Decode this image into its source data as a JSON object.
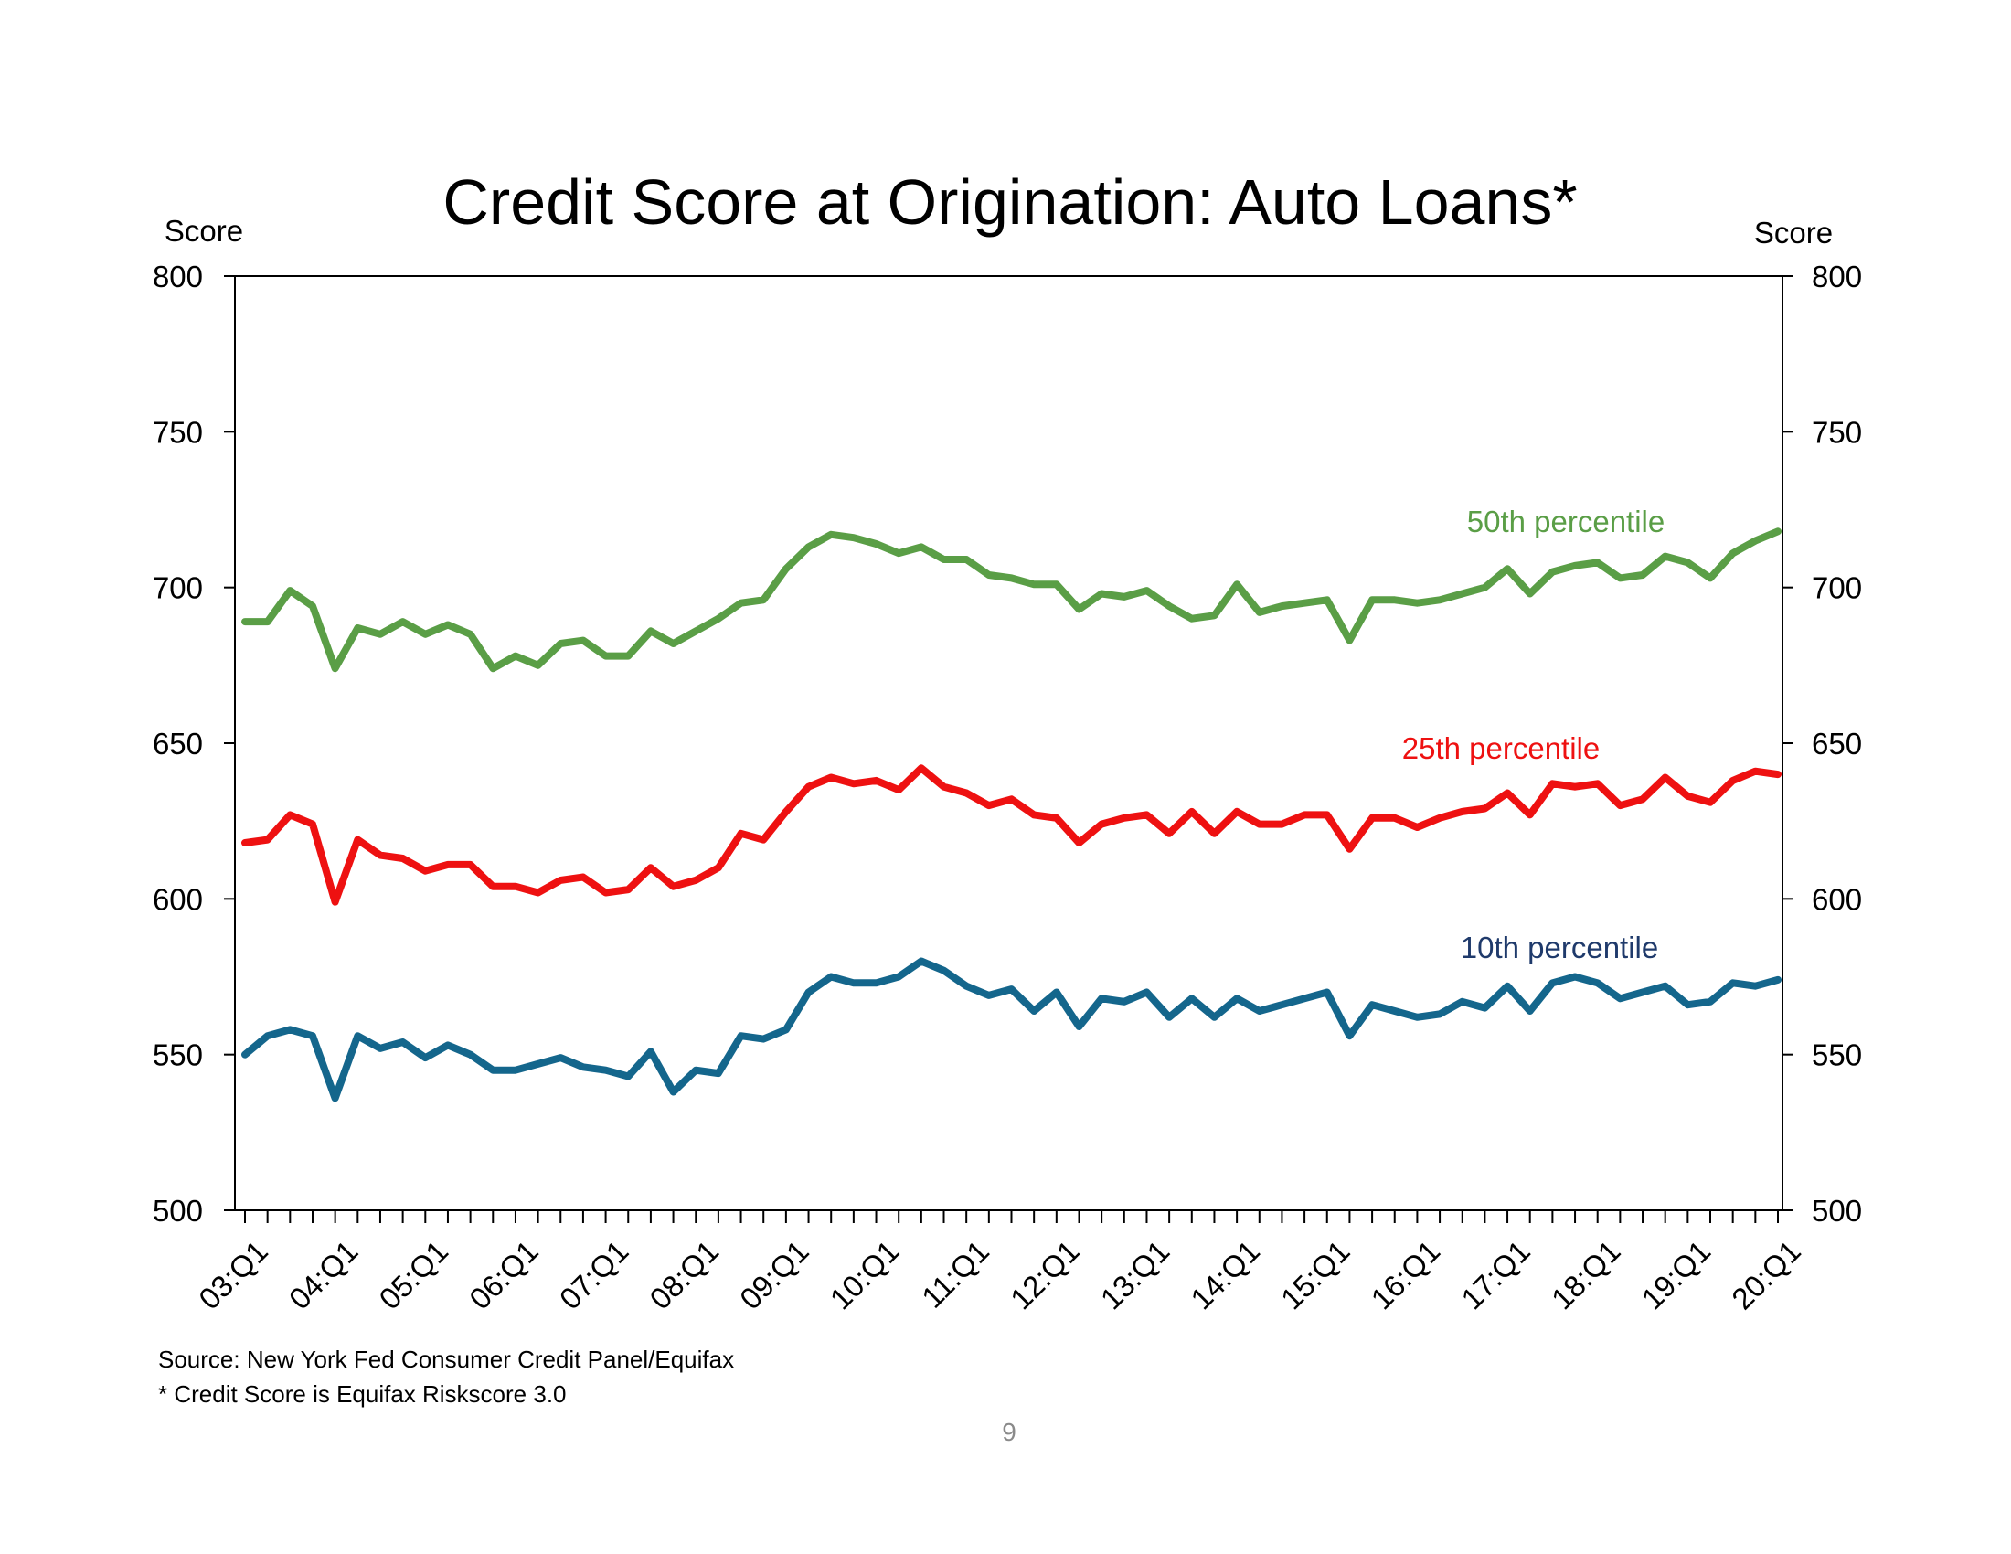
{
  "page": {
    "number": "9"
  },
  "notes": {
    "source": "Source: New York Fed Consumer Credit Panel/Equifax",
    "footnote": "* Credit Score is Equifax Riskscore 3.0"
  },
  "chart_data": {
    "type": "line",
    "title": "Credit Score at Origination: Auto Loans*",
    "ylabel_left": "Score",
    "ylabel_right": "Score",
    "ylim": [
      500,
      800
    ],
    "yticks": [
      500,
      550,
      600,
      650,
      700,
      750,
      800
    ],
    "x_tick_labels": [
      "03:Q1",
      "04:Q1",
      "05:Q1",
      "06:Q1",
      "07:Q1",
      "08:Q1",
      "09:Q1",
      "10:Q1",
      "11:Q1",
      "12:Q1",
      "13:Q1",
      "14:Q1",
      "15:Q1",
      "16:Q1",
      "17:Q1",
      "18:Q1",
      "19:Q1",
      "20:Q1"
    ],
    "x_start": "2003 Q1",
    "x_end": "2020 Q1",
    "grid": false,
    "legend": "inline labels",
    "series": [
      {
        "name": "50th percentile",
        "color": "#5a9e46",
        "values": [
          689,
          689,
          699,
          694,
          674,
          687,
          685,
          689,
          685,
          688,
          685,
          674,
          678,
          675,
          682,
          683,
          678,
          678,
          686,
          682,
          686,
          690,
          695,
          696,
          706,
          713,
          717,
          716,
          714,
          711,
          713,
          709,
          709,
          704,
          703,
          701,
          701,
          693,
          698,
          697,
          699,
          694,
          690,
          691,
          701,
          692,
          694,
          695,
          696,
          683,
          696,
          696,
          695,
          696,
          698,
          700,
          706,
          698,
          705,
          707,
          708,
          703,
          704,
          710,
          708,
          703,
          711,
          715,
          718
        ]
      },
      {
        "name": "25th percentile",
        "color": "#ee1111",
        "values": [
          618,
          619,
          627,
          624,
          599,
          619,
          614,
          613,
          609,
          611,
          611,
          604,
          604,
          602,
          606,
          607,
          602,
          603,
          610,
          604,
          606,
          610,
          621,
          619,
          628,
          636,
          639,
          637,
          638,
          635,
          642,
          636,
          634,
          630,
          632,
          627,
          626,
          618,
          624,
          626,
          627,
          621,
          628,
          621,
          628,
          624,
          624,
          627,
          627,
          616,
          626,
          626,
          623,
          626,
          628,
          629,
          634,
          627,
          637,
          636,
          637,
          630,
          632,
          639,
          633,
          631,
          638,
          641,
          640
        ]
      },
      {
        "name": "10th percentile",
        "color": "#14668c",
        "label_color": "#1f3a6b",
        "values": [
          550,
          556,
          558,
          556,
          536,
          556,
          552,
          554,
          549,
          553,
          550,
          545,
          545,
          547,
          549,
          546,
          545,
          543,
          551,
          538,
          545,
          544,
          556,
          555,
          558,
          570,
          575,
          573,
          573,
          575,
          580,
          577,
          572,
          569,
          571,
          564,
          570,
          559,
          568,
          567,
          570,
          562,
          568,
          562,
          568,
          564,
          566,
          568,
          570,
          556,
          566,
          564,
          562,
          563,
          567,
          565,
          572,
          564,
          573,
          575,
          573,
          568,
          570,
          572,
          566,
          567,
          573,
          572,
          574
        ]
      }
    ]
  }
}
